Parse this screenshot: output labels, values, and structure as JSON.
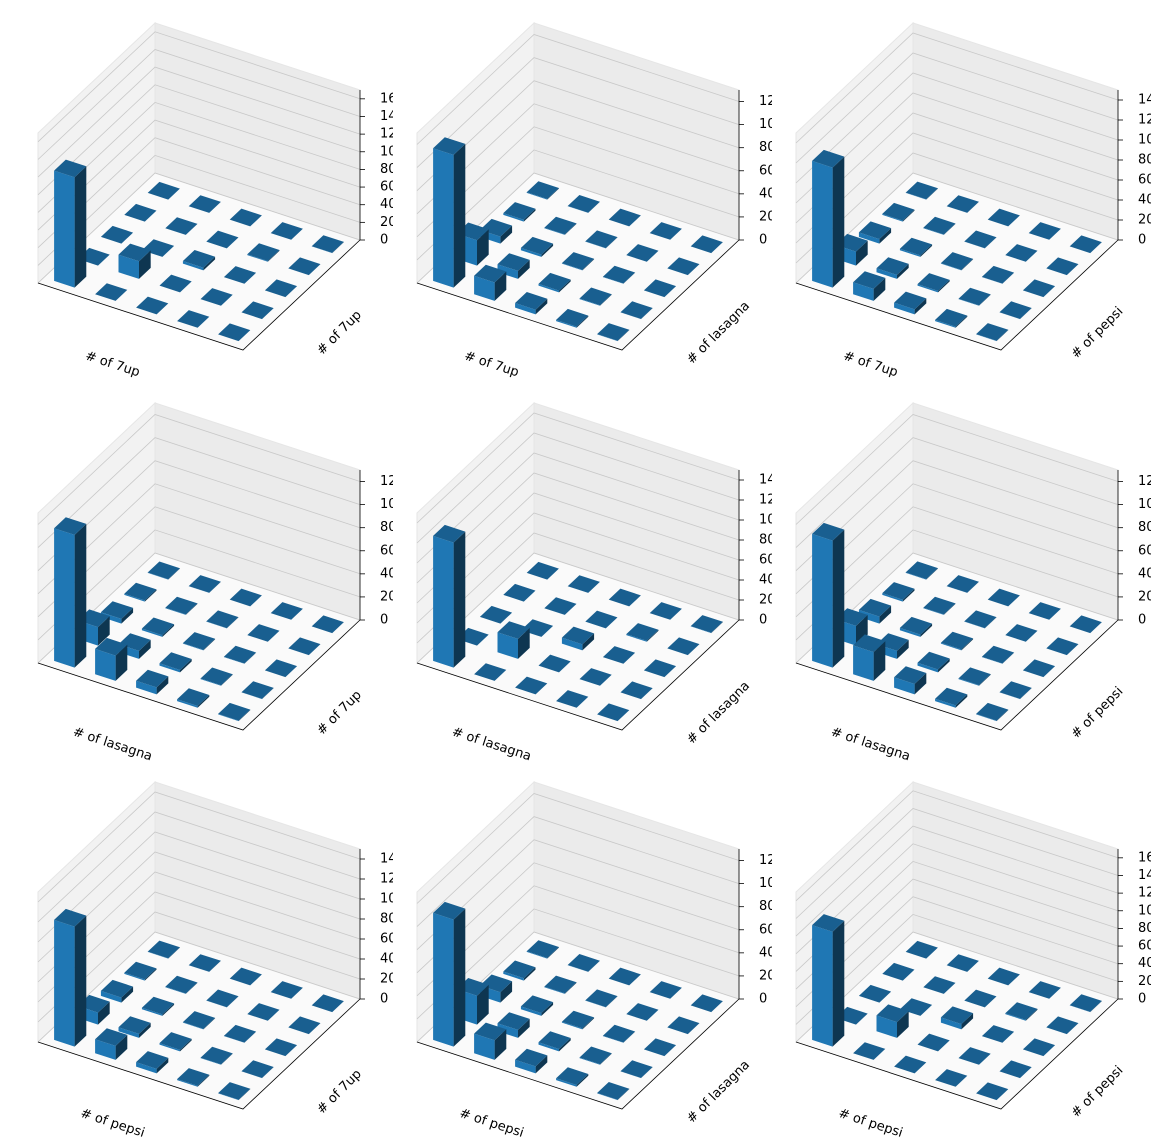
{
  "chart_data": [
    {
      "type": "bar3d",
      "xlabel": "# of 7up",
      "ylabel": "# of 7up",
      "color": "#1f77b4",
      "zlim": [
        0,
        1700
      ],
      "zticks": [
        0,
        200,
        400,
        600,
        800,
        1000,
        1200,
        1400,
        1600
      ],
      "values": [
        [
          1250,
          0,
          0,
          0,
          0
        ],
        [
          0,
          200,
          0,
          0,
          0
        ],
        [
          0,
          0,
          30,
          0,
          0
        ],
        [
          0,
          0,
          0,
          8,
          0
        ],
        [
          0,
          0,
          0,
          0,
          3
        ]
      ]
    },
    {
      "type": "bar3d",
      "xlabel": "# of 7up",
      "ylabel": "# of lasagna",
      "color": "#1f77b4",
      "zlim": [
        0,
        1300
      ],
      "zticks": [
        0,
        200,
        400,
        600,
        800,
        1000,
        1200
      ],
      "values": [
        [
          1150,
          220,
          60,
          15,
          5
        ],
        [
          160,
          70,
          20,
          5,
          2
        ],
        [
          40,
          15,
          5,
          2,
          0
        ],
        [
          10,
          5,
          2,
          0,
          0
        ],
        [
          3,
          1,
          0,
          0,
          0
        ]
      ]
    },
    {
      "type": "bar3d",
      "xlabel": "# of 7up",
      "ylabel": "# of pepsi",
      "color": "#1f77b4",
      "zlim": [
        0,
        1500
      ],
      "zticks": [
        0,
        200,
        400,
        600,
        800,
        1000,
        1200,
        1400
      ],
      "values": [
        [
          1200,
          140,
          45,
          10,
          3
        ],
        [
          120,
          40,
          15,
          4,
          1
        ],
        [
          50,
          15,
          5,
          1,
          0
        ],
        [
          12,
          4,
          1,
          0,
          0
        ],
        [
          3,
          1,
          0,
          0,
          0
        ]
      ]
    },
    {
      "type": "bar3d",
      "xlabel": "# of lasagna",
      "ylabel": "# of 7up",
      "color": "#1f77b4",
      "zlim": [
        0,
        1300
      ],
      "zticks": [
        0,
        200,
        400,
        600,
        800,
        1000,
        1200
      ],
      "values": [
        [
          1150,
          160,
          40,
          10,
          3
        ],
        [
          220,
          70,
          15,
          5,
          1
        ],
        [
          60,
          20,
          5,
          2,
          0
        ],
        [
          15,
          5,
          2,
          0,
          0
        ],
        [
          5,
          2,
          0,
          0,
          0
        ]
      ]
    },
    {
      "type": "bar3d",
      "xlabel": "# of lasagna",
      "ylabel": "# of lasagna",
      "color": "#1f77b4",
      "zlim": [
        0,
        1500
      ],
      "zticks": [
        0,
        200,
        400,
        600,
        800,
        1000,
        1200,
        1400
      ],
      "values": [
        [
          1250,
          0,
          0,
          0,
          0
        ],
        [
          0,
          200,
          0,
          0,
          0
        ],
        [
          0,
          0,
          60,
          0,
          0
        ],
        [
          0,
          0,
          0,
          10,
          0
        ],
        [
          0,
          0,
          0,
          0,
          3
        ]
      ]
    },
    {
      "type": "bar3d",
      "xlabel": "# of lasagna",
      "ylabel": "# of pepsi",
      "color": "#1f77b4",
      "zlim": [
        0,
        1300
      ],
      "zticks": [
        0,
        200,
        400,
        600,
        800,
        1000,
        1200
      ],
      "values": [
        [
          1100,
          170,
          60,
          15,
          4
        ],
        [
          250,
          70,
          20,
          5,
          1
        ],
        [
          90,
          25,
          8,
          2,
          0
        ],
        [
          20,
          6,
          2,
          0,
          0
        ],
        [
          5,
          2,
          0,
          0,
          0
        ]
      ]
    },
    {
      "type": "bar3d",
      "xlabel": "# of pepsi",
      "ylabel": "# of 7up",
      "color": "#1f77b4",
      "zlim": [
        0,
        1500
      ],
      "zticks": [
        0,
        200,
        400,
        600,
        800,
        1000,
        1200,
        1400
      ],
      "values": [
        [
          1200,
          120,
          50,
          12,
          3
        ],
        [
          140,
          40,
          15,
          4,
          1
        ],
        [
          45,
          15,
          5,
          1,
          0
        ],
        [
          10,
          4,
          1,
          0,
          0
        ],
        [
          3,
          1,
          0,
          0,
          0
        ]
      ]
    },
    {
      "type": "bar3d",
      "xlabel": "# of pepsi",
      "ylabel": "# of lasagna",
      "color": "#1f77b4",
      "zlim": [
        0,
        1300
      ],
      "zticks": [
        0,
        200,
        400,
        600,
        800,
        1000,
        1200
      ],
      "values": [
        [
          1100,
          250,
          90,
          20,
          5
        ],
        [
          170,
          70,
          25,
          6,
          2
        ],
        [
          60,
          20,
          8,
          2,
          0
        ],
        [
          15,
          5,
          2,
          0,
          0
        ],
        [
          4,
          1,
          0,
          0,
          0
        ]
      ]
    },
    {
      "type": "bar3d",
      "xlabel": "# of pepsi",
      "ylabel": "# of pepsi",
      "color": "#1f77b4",
      "zlim": [
        0,
        1700
      ],
      "zticks": [
        0,
        200,
        400,
        600,
        800,
        1000,
        1200,
        1400,
        1600
      ],
      "values": [
        [
          1300,
          0,
          0,
          0,
          0
        ],
        [
          0,
          180,
          0,
          0,
          0
        ],
        [
          0,
          0,
          60,
          0,
          0
        ],
        [
          0,
          0,
          0,
          10,
          0
        ],
        [
          0,
          0,
          0,
          0,
          3
        ]
      ]
    }
  ]
}
